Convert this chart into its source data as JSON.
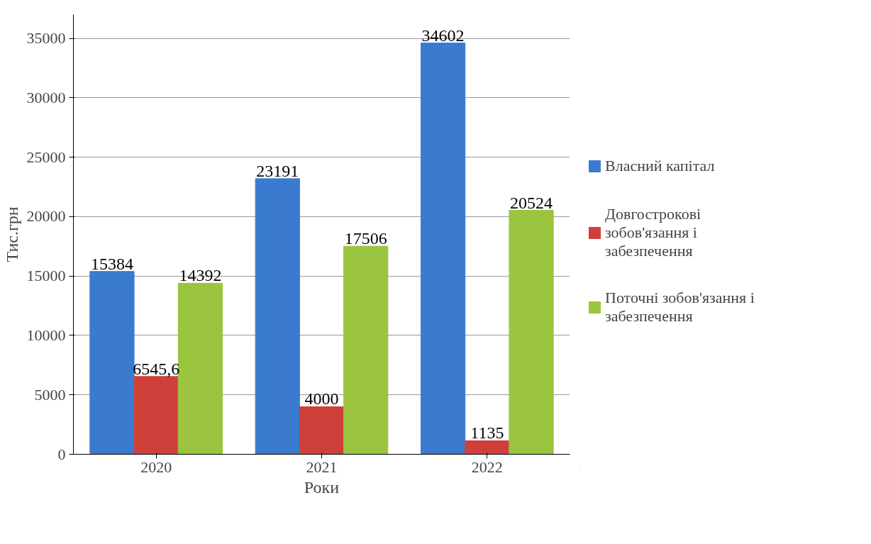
{
  "chart_data": {
    "type": "bar",
    "xlabel": "Роки",
    "ylabel": "Тис.грн",
    "categories": [
      "2020",
      "2021",
      "2022"
    ],
    "series": [
      {
        "name": "Власний капітал",
        "color": "#3a7bd0",
        "values": [
          15384,
          23191,
          34602
        ],
        "value_labels": [
          "15384",
          "23191",
          "34602"
        ]
      },
      {
        "name": "Довгострокові зобов'язання і забезпечення",
        "color": "#d0403a",
        "values": [
          6545.6,
          4000,
          1135
        ],
        "value_labels": [
          "6545,6",
          "4000",
          "1135"
        ]
      },
      {
        "name": "Поточні зобов'язання і забезпечення",
        "color": "#9bc43f",
        "values": [
          14392,
          17506,
          20524
        ],
        "value_labels": [
          "14392",
          "17506",
          "20524"
        ]
      }
    ],
    "ylim": [
      0,
      37000
    ],
    "yticks": [
      0,
      5000,
      10000,
      15000,
      20000,
      25000,
      30000,
      35000
    ],
    "grid": "y",
    "legend": "right"
  }
}
